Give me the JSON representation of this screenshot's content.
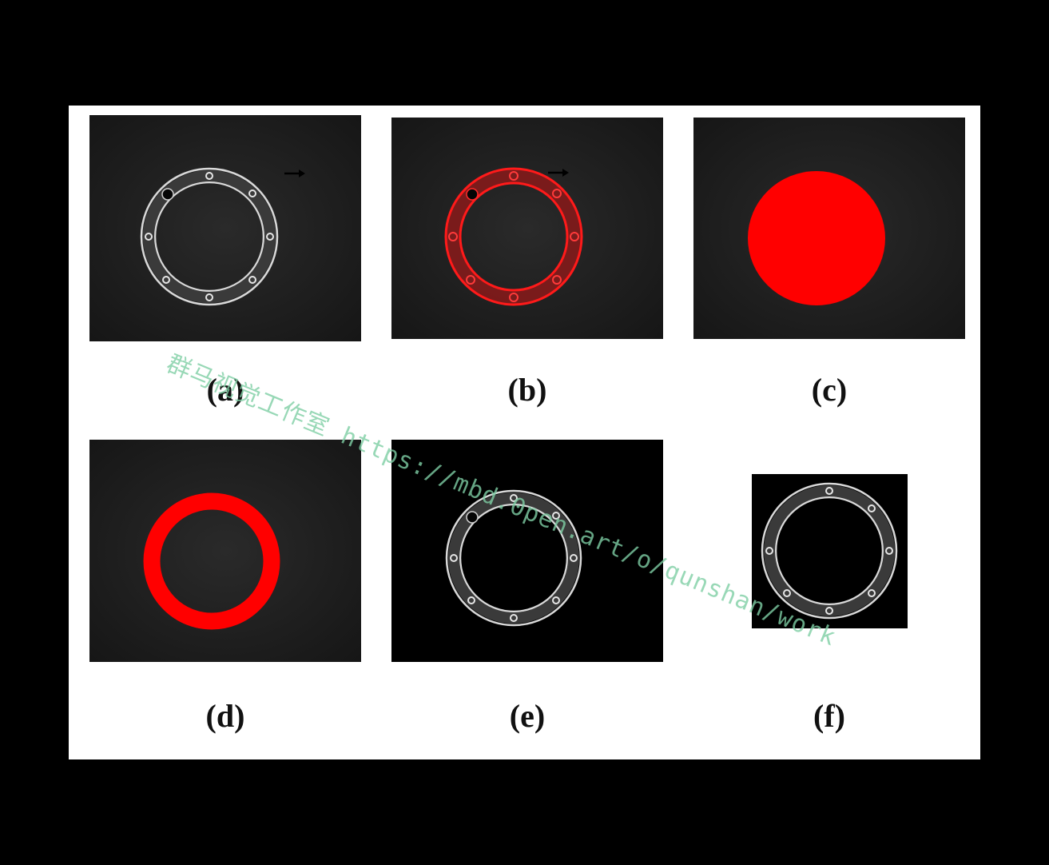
{
  "figure": {
    "panels": [
      {
        "label": "(a)",
        "content": "original-ring-image"
      },
      {
        "label": "(b)",
        "content": "ring-with-red-detection-overlay"
      },
      {
        "label": "(c)",
        "content": "red-disc-mask"
      },
      {
        "label": "(d)",
        "content": "red-annulus-mask"
      },
      {
        "label": "(e)",
        "content": "masked-ring-image"
      },
      {
        "label": "(f)",
        "content": "cropped-ring-image"
      }
    ],
    "mask_color": "#ff0000",
    "background_dark": "#1d1d1d",
    "background_black": "#000000"
  },
  "watermark": {
    "text": "群马视觉工作室 https://mbd.0pen.art/o/qunshan/work"
  }
}
